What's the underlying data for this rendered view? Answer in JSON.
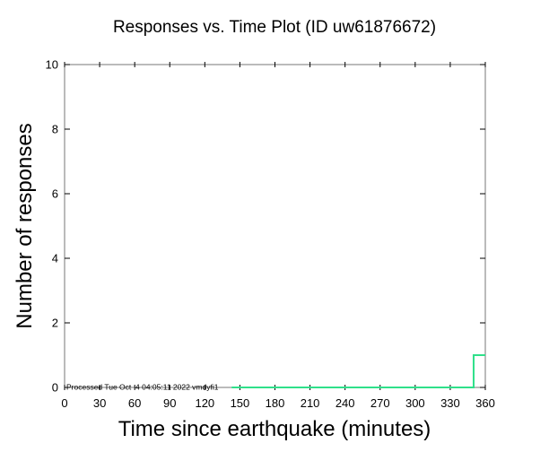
{
  "chart_data": {
    "type": "line",
    "title": "Responses vs. Time Plot (ID uw61876672)",
    "xlabel": "Time since earthquake (minutes)",
    "ylabel": "Number of responses",
    "xlim": [
      0,
      360
    ],
    "ylim": [
      0,
      10
    ],
    "xticks": [
      0,
      30,
      60,
      90,
      120,
      150,
      180,
      210,
      240,
      270,
      300,
      330,
      360
    ],
    "yticks": [
      0,
      2,
      4,
      6,
      8,
      10
    ],
    "series": [
      {
        "color": "#2fe08a",
        "step": true,
        "x": [
          143,
          350,
          350,
          360
        ],
        "y": [
          0,
          0,
          1,
          1
        ]
      }
    ],
    "annotation": "Processed Tue Oct  4 04:05:11 2022 vmdyfi1",
    "grid": false
  }
}
